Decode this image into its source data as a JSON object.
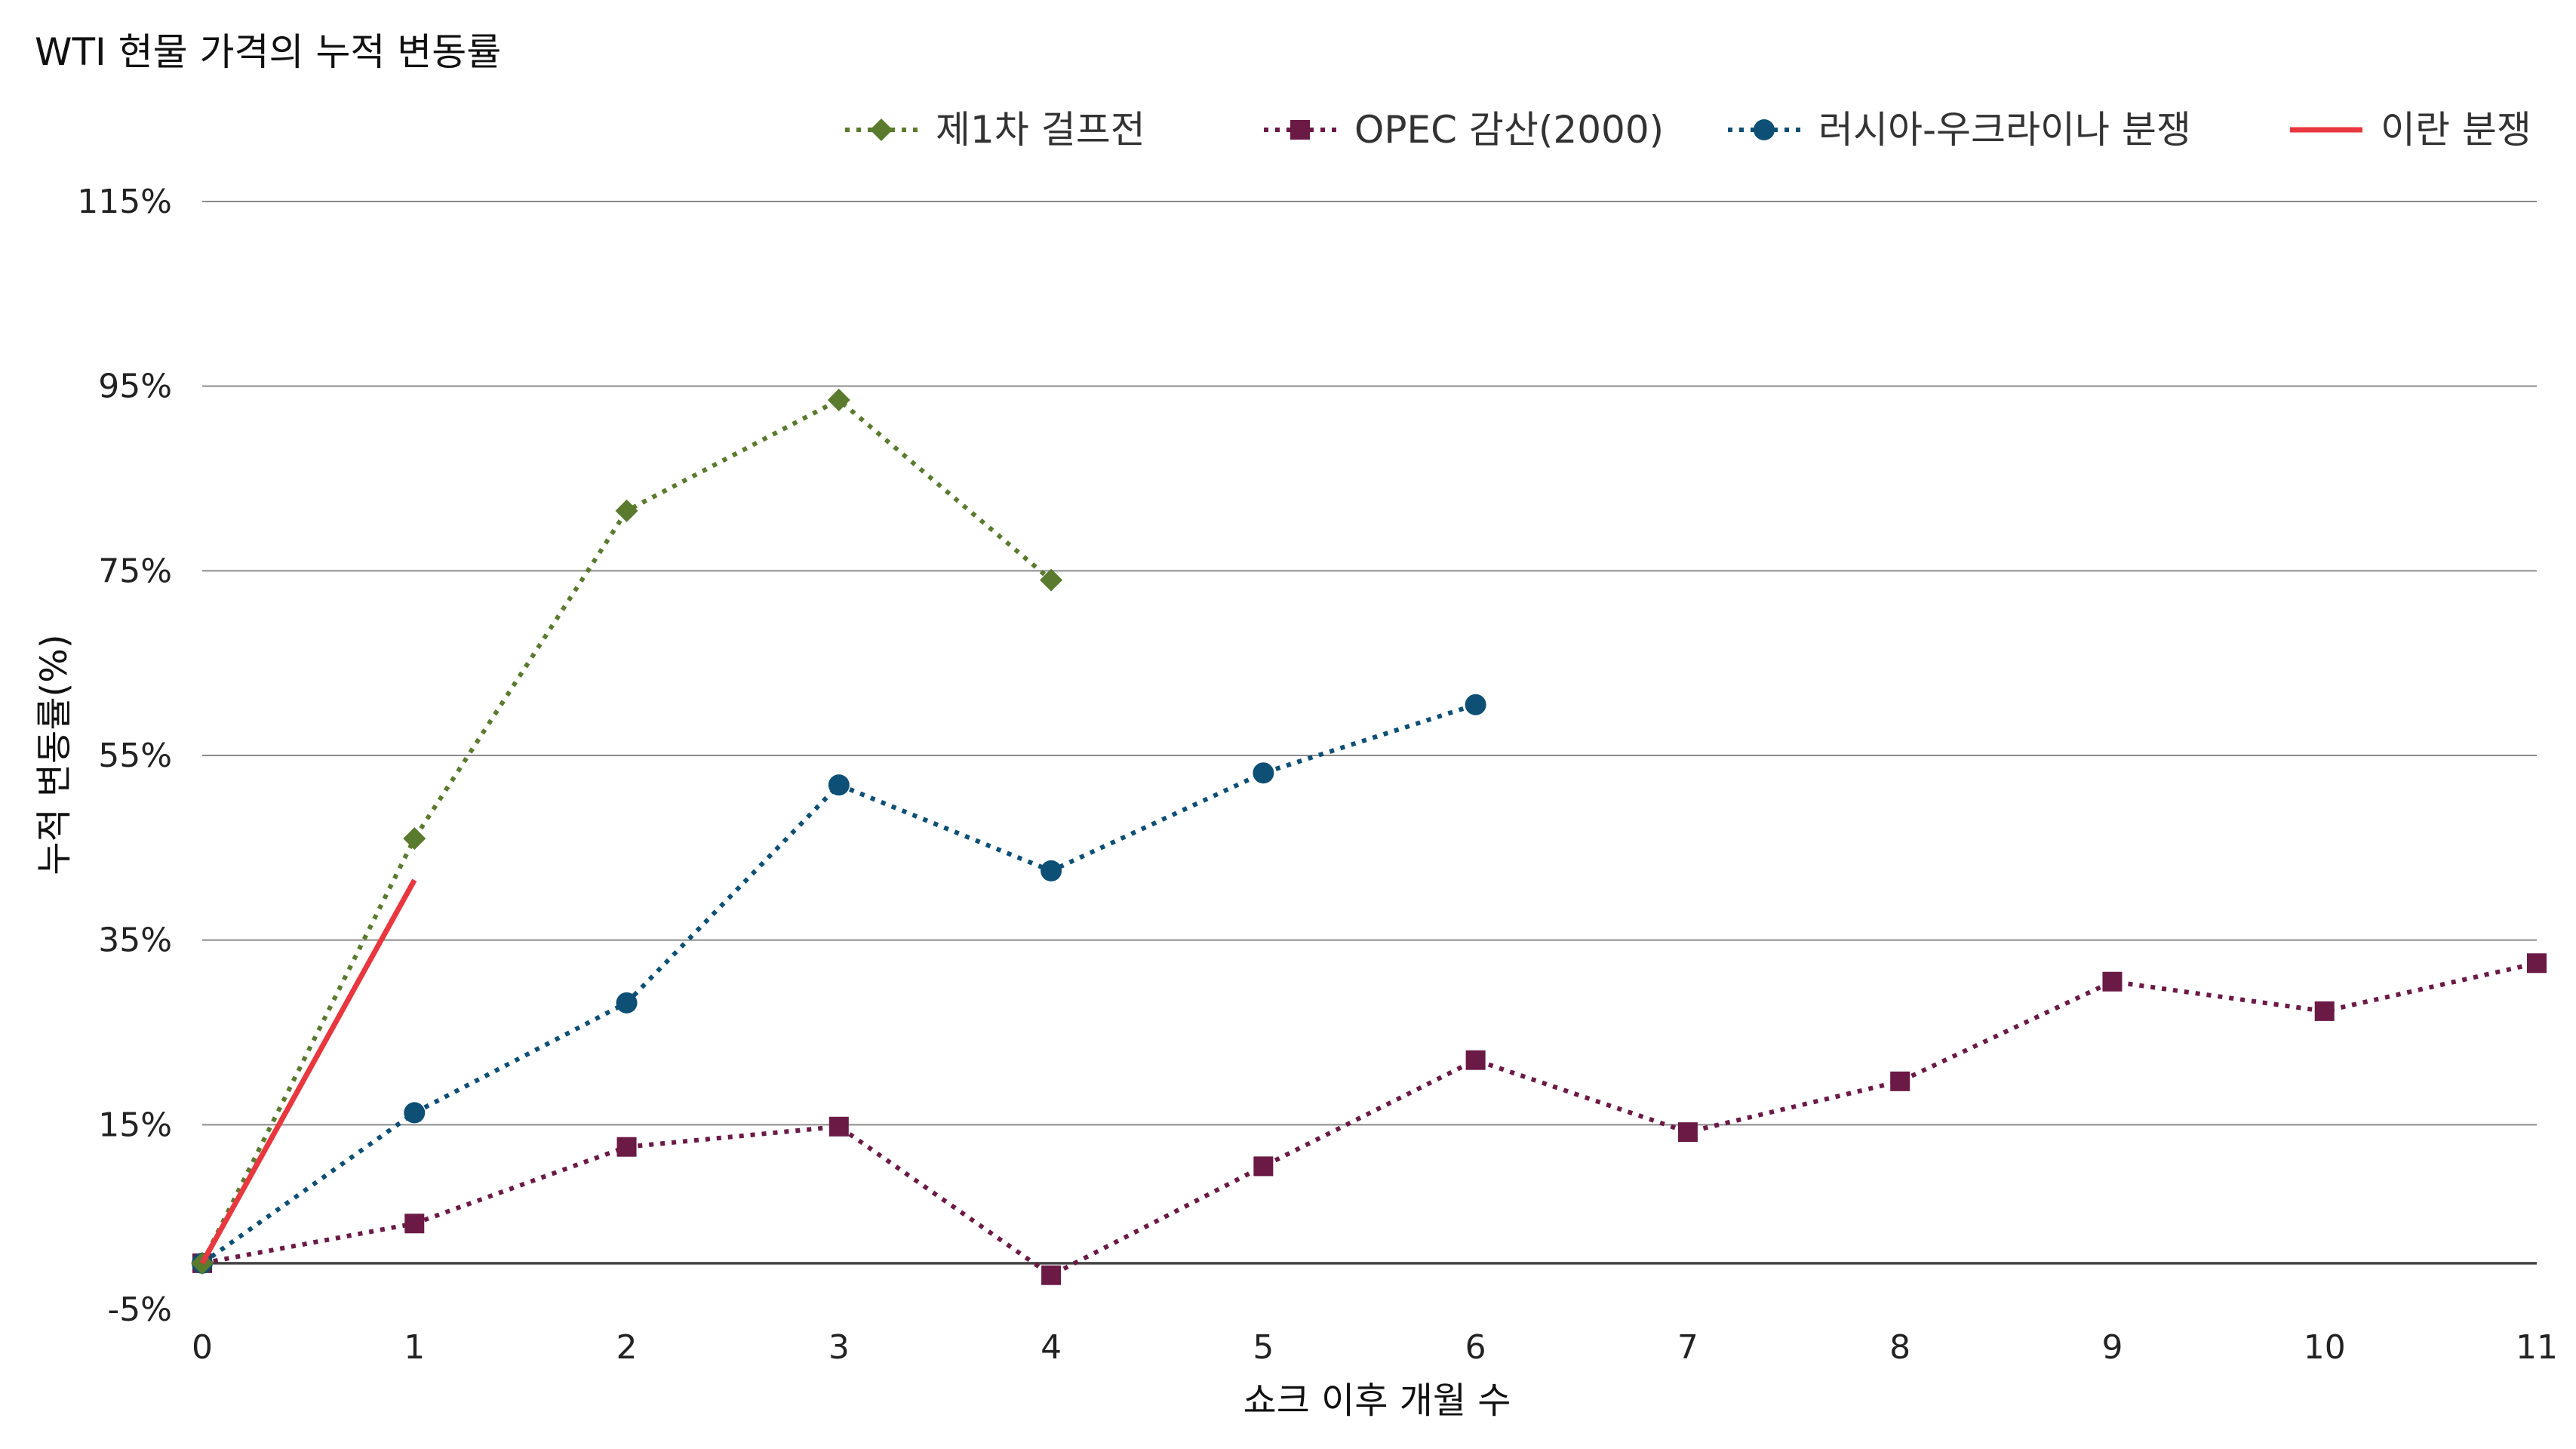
{
  "chart_data": {
    "type": "line",
    "title": "WTI 현물 가격의 누적 변동률",
    "xlabel": "쇼크 이후 개월 수",
    "ylabel": "누적 변동률(%)",
    "x": [
      0,
      1,
      2,
      3,
      4,
      5,
      6,
      7,
      8,
      9,
      10,
      11
    ],
    "x_tick_labels": [
      "0",
      "1",
      "2",
      "3",
      "4",
      "5",
      "6",
      "7",
      "8",
      "9",
      "10",
      "11"
    ],
    "y_ticks": [
      -5,
      15,
      35,
      55,
      75,
      95,
      115
    ],
    "y_tick_labels": [
      "-5%",
      "15%",
      "35%",
      "55%",
      "75%",
      "95%",
      "115%"
    ],
    "ylim": [
      -5,
      115
    ],
    "xlim": [
      0,
      11
    ],
    "grid": "horizontal",
    "zero_line": 0,
    "legend_position": "top-right",
    "series": [
      {
        "name": "제1차 걸프전",
        "color": "#5a7a2e",
        "marker": "diamond",
        "line_style": "dotted",
        "x": [
          0,
          1,
          2,
          3,
          4
        ],
        "values": [
          0,
          46,
          81.5,
          93.5,
          74
        ]
      },
      {
        "name": "OPEC 감산(2000)",
        "color": "#6b1a45",
        "marker": "square",
        "line_style": "dotted",
        "x": [
          0,
          1,
          2,
          3,
          4,
          5,
          6,
          7,
          8,
          9,
          10,
          11
        ],
        "values": [
          0,
          4.3,
          12.6,
          14.8,
          -1.3,
          10.5,
          22,
          14.2,
          19.7,
          30.5,
          27.3,
          32.5
        ]
      },
      {
        "name": "러시아-우크라이나 분쟁",
        "color": "#0d4f75",
        "marker": "circle",
        "line_style": "dotted",
        "x": [
          0,
          1,
          2,
          3,
          4,
          5,
          6
        ],
        "values": [
          0,
          16.3,
          28.2,
          51.8,
          42.5,
          53.1,
          60.5
        ]
      },
      {
        "name": "이란 분쟁",
        "color": "#e8373e",
        "marker": "none",
        "line_style": "solid",
        "x": [
          0,
          1
        ],
        "values": [
          0,
          41.5
        ]
      }
    ]
  }
}
